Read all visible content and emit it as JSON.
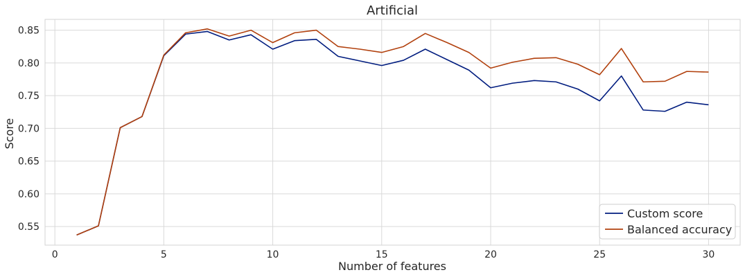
{
  "chart_data": {
    "type": "line",
    "title": "Artificial",
    "xlabel": "Number of features",
    "ylabel": "Score",
    "xlim": [
      -0.45,
      31.45
    ],
    "ylim": [
      0.5215,
      0.8665
    ],
    "xticks": [
      0,
      5,
      10,
      15,
      20,
      25,
      30
    ],
    "yticks": [
      0.55,
      0.6,
      0.65,
      0.7,
      0.75,
      0.8,
      0.85
    ],
    "grid": true,
    "legend_position": "bottom-right",
    "x": [
      1,
      2,
      3,
      4,
      5,
      6,
      7,
      8,
      9,
      10,
      11,
      12,
      13,
      14,
      15,
      16,
      17,
      18,
      19,
      20,
      21,
      22,
      23,
      24,
      25,
      26,
      27,
      28,
      29,
      30
    ],
    "series": [
      {
        "name": "Custom score",
        "color": "#001c7f",
        "values": [
          0.537,
          0.551,
          0.701,
          0.718,
          0.811,
          0.844,
          0.848,
          0.835,
          0.843,
          0.821,
          0.834,
          0.836,
          0.81,
          0.803,
          0.796,
          0.804,
          0.821,
          0.805,
          0.789,
          0.762,
          0.769,
          0.773,
          0.771,
          0.76,
          0.742,
          0.78,
          0.728,
          0.726,
          0.74,
          0.736
        ]
      },
      {
        "name": "Balanced accuracy",
        "color": "#b1400d",
        "values": [
          0.537,
          0.551,
          0.701,
          0.718,
          0.812,
          0.846,
          0.852,
          0.841,
          0.85,
          0.831,
          0.846,
          0.85,
          0.825,
          0.821,
          0.816,
          0.825,
          0.845,
          0.831,
          0.816,
          0.792,
          0.801,
          0.807,
          0.808,
          0.798,
          0.782,
          0.822,
          0.771,
          0.772,
          0.787,
          0.786
        ]
      }
    ]
  }
}
